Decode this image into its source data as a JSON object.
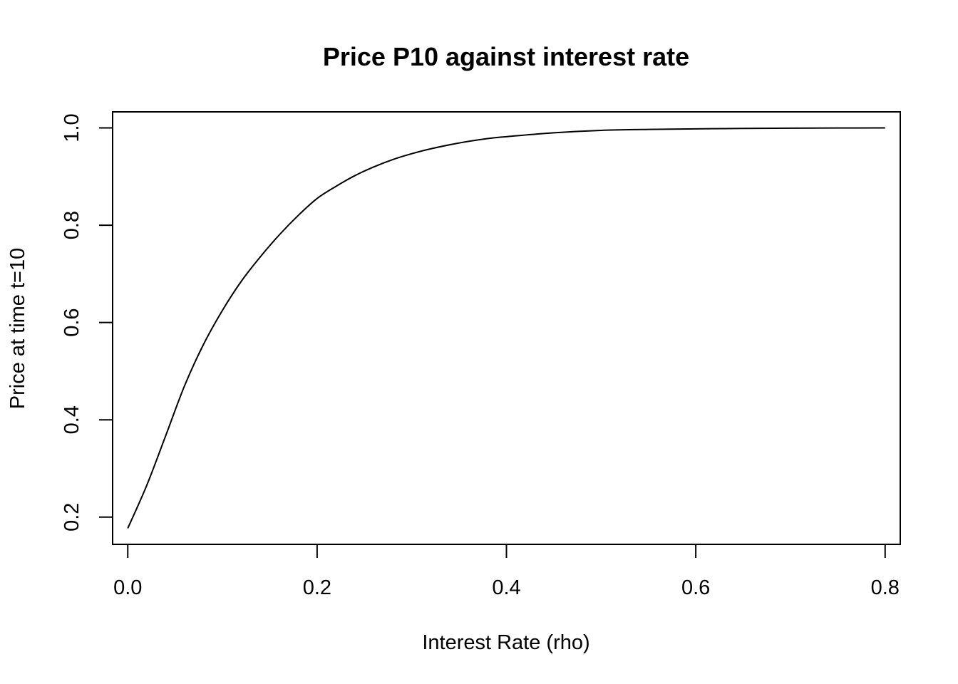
{
  "chart_data": {
    "type": "line",
    "title": "Price P10 against interest rate",
    "xlabel": "Interest Rate (rho)",
    "ylabel": "Price at time t=10",
    "xlim": [
      -0.016,
      0.816
    ],
    "ylim": [
      0.144,
      1.033
    ],
    "x_ticks": [
      0.0,
      0.2,
      0.4,
      0.6,
      0.8
    ],
    "x_tick_labels": [
      "0.0",
      "0.2",
      "0.4",
      "0.6",
      "0.8"
    ],
    "y_ticks": [
      0.2,
      0.4,
      0.6,
      0.8,
      1.0
    ],
    "y_tick_labels": [
      "0.2",
      "0.4",
      "0.6",
      "0.8",
      "1.0"
    ],
    "grid": false,
    "legend": "none",
    "line_color": "#000000",
    "series": [
      {
        "x": [
          0.0,
          0.02,
          0.04,
          0.06,
          0.08,
          0.1,
          0.12,
          0.14,
          0.16,
          0.18,
          0.2,
          0.22,
          0.24,
          0.26,
          0.28,
          0.3,
          0.32,
          0.35,
          0.38,
          0.4,
          0.45,
          0.5,
          0.55,
          0.6,
          0.65,
          0.7,
          0.75,
          0.8
        ],
        "y": [
          0.177,
          0.265,
          0.367,
          0.47,
          0.555,
          0.625,
          0.685,
          0.735,
          0.78,
          0.82,
          0.855,
          0.88,
          0.902,
          0.92,
          0.935,
          0.947,
          0.957,
          0.969,
          0.978,
          0.982,
          0.99,
          0.995,
          0.997,
          0.998,
          0.999,
          0.9995,
          0.9998,
          1.0
        ]
      }
    ]
  }
}
